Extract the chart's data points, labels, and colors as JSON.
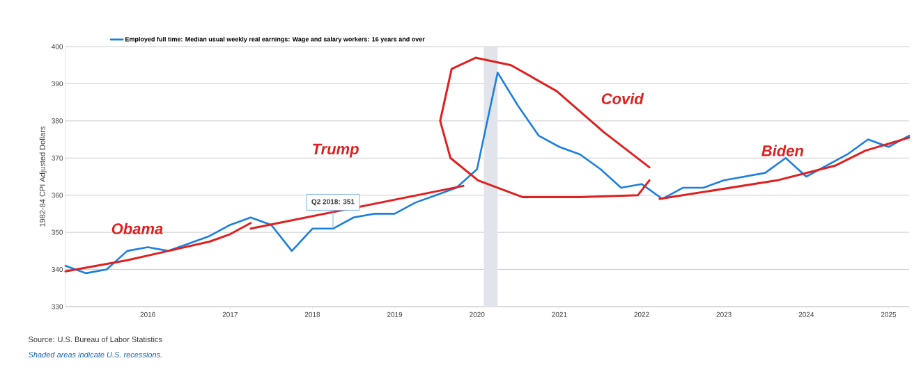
{
  "chart_data": {
    "type": "line",
    "x": [
      "2015-01",
      "2015-04",
      "2015-07",
      "2015-10",
      "2016-01",
      "2016-04",
      "2016-07",
      "2016-10",
      "2017-01",
      "2017-04",
      "2017-07",
      "2017-10",
      "2018-01",
      "2018-04",
      "2018-07",
      "2018-10",
      "2019-01",
      "2019-04",
      "2019-07",
      "2019-10",
      "2020-01",
      "2020-04",
      "2020-07",
      "2020-10",
      "2021-01",
      "2021-04",
      "2021-07",
      "2021-10",
      "2022-01",
      "2022-04",
      "2022-07",
      "2022-10",
      "2023-01",
      "2023-04",
      "2023-07",
      "2023-10",
      "2024-01",
      "2024-04",
      "2024-07",
      "2024-10",
      "2025-01",
      "2025-04"
    ],
    "series": [
      {
        "name": "Employed full time: Median usual weekly real earnings: Wage and salary workers: 16 years and over",
        "color": "#1a7fe0",
        "values": [
          341,
          339,
          340,
          345,
          346,
          345,
          347,
          349,
          352,
          354,
          352,
          345,
          351,
          351,
          354,
          355,
          355,
          358,
          360,
          362,
          367,
          393,
          384,
          376,
          373,
          371,
          367,
          362,
          363,
          359,
          362,
          362,
          364,
          365,
          366,
          370,
          365,
          368,
          371,
          375,
          373,
          376
        ]
      },
      {
        "color": "#e02020",
        "x": [
          "2015-01",
          "2015-10",
          "2016-04",
          "2016-10",
          "2017-01",
          "2017-04"
        ],
        "values": [
          339.5,
          342.5,
          345,
          347.5,
          349.5,
          352.5
        ]
      },
      {
        "color": "#e02020",
        "x": [
          "2017-04",
          "2019-11"
        ],
        "values": [
          351,
          362.5
        ]
      },
      {
        "color": "#e02020",
        "x": [
          "2022-02-05",
          "2021-07-15",
          "2020-12-20",
          "2020-05-30",
          "2019-12-25",
          "2019-09-10",
          "2019-07-20",
          "2019-09-05",
          "2020-01-05",
          "2020-07-20",
          "2021-04-01",
          "2021-12-15",
          "2022-02-05"
        ],
        "values": [
          367.5,
          377,
          388,
          395,
          397,
          394,
          380,
          370,
          364,
          359.5,
          359.5,
          360,
          364
        ]
      },
      {
        "color": "#e02020",
        "x": [
          "2022-03-20",
          "2023-08-25",
          "2024-05-10",
          "2024-09-20",
          "2025-04"
        ],
        "values": [
          359,
          364,
          368,
          372,
          375.5
        ]
      }
    ],
    "xlim": [
      "2015-01",
      "2025-04"
    ],
    "xticks": [
      "2016",
      "2017",
      "2018",
      "2019",
      "2020",
      "2021",
      "2022",
      "2023",
      "2024",
      "2025"
    ],
    "ylim": [
      330,
      400
    ],
    "yticks": [
      330,
      340,
      350,
      360,
      370,
      380,
      390,
      400
    ],
    "ylabel": "1982-84 CPI Adjusted Dollars",
    "grid": "y",
    "legend": "top",
    "bands": [
      {
        "axis": "x",
        "from": "2020-02",
        "to": "2020-04",
        "color": "#e1e4ea"
      }
    ],
    "annotations": [
      {
        "text": "Q2 2018: 351",
        "x": "2018-04",
        "y": 351
      },
      "Obama",
      "Trump",
      "Covid",
      "Biden",
      "Source: U.S. Bureau of Labor Statistics",
      "Shaded areas indicate U.S. recessions."
    ]
  }
}
